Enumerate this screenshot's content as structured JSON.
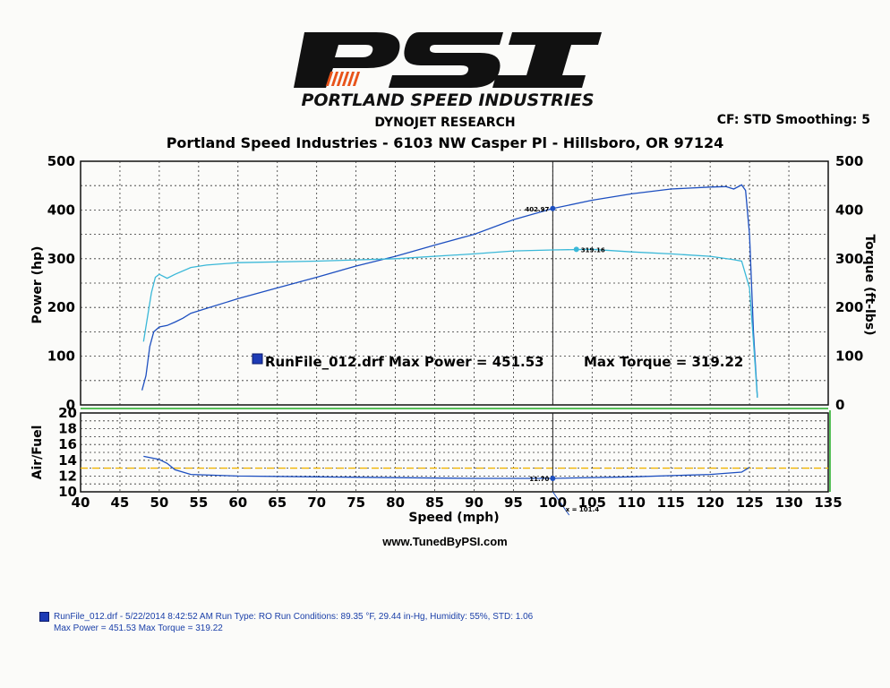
{
  "logo": {
    "letters": "PSI",
    "tagline": "PORTLAND SPEED INDUSTRIES"
  },
  "header": {
    "title": "DYNOJET RESEARCH",
    "settings": "CF: STD  Smoothing: 5",
    "address": "Portland Speed Industries - 6103 NW Casper Pl - Hillsboro, OR 97124"
  },
  "website": "www.TunedByPSI.com",
  "legend": {
    "run_text": "RunFile_012.drf Max Power = 451.53",
    "torque_text": "Max Torque = 319.22",
    "marker_color": "#1d3bb5"
  },
  "footer": {
    "line1": "RunFile_012.drf - 5/22/2014 8:42:52 AM  Run Type: RO  Run Conditions: 89.35 °F, 29.44 in-Hg,  Humidity:  55%, STD: 1.06",
    "line2": "Max Power = 451.53  Max Torque = 319.22"
  },
  "chart_data": [
    {
      "type": "line",
      "xlabel": "",
      "ylabel": "Power (hp)",
      "y2label": "Torque (ft-lbs)",
      "xlim": [
        40,
        135
      ],
      "ylim": [
        0,
        500
      ],
      "y2lim": [
        0,
        500
      ],
      "yticks": [
        0,
        100,
        200,
        300,
        400,
        500
      ],
      "grid": true,
      "cursor_x": 100,
      "annotations": [
        {
          "series": "power",
          "x": 100,
          "y": 402.97,
          "label": "402.97"
        },
        {
          "series": "torque",
          "x": 103,
          "y": 319.16,
          "label": "319.16"
        }
      ],
      "series": [
        {
          "id": "power",
          "color": "#1d4fc0",
          "x": [
            47.8,
            48.3,
            48.8,
            49.3,
            50,
            51,
            52,
            53,
            54,
            56,
            60,
            65,
            70,
            75,
            80,
            85,
            90,
            95,
            100,
            105,
            110,
            115,
            120,
            122,
            123,
            124,
            124.5,
            125,
            125.5,
            126
          ],
          "y": [
            30,
            60,
            120,
            150,
            160,
            163,
            170,
            178,
            188,
            198,
            218,
            240,
            262,
            285,
            305,
            328,
            350,
            380,
            402.97,
            420,
            433,
            443,
            447,
            448,
            443,
            451.53,
            440,
            350,
            150,
            15
          ]
        },
        {
          "id": "torque",
          "color": "#3ab8d8",
          "x": [
            48,
            48.5,
            49,
            49.5,
            50,
            51,
            52,
            54,
            56,
            60,
            70,
            80,
            90,
            95,
            100,
            105,
            110,
            115,
            120,
            123,
            124,
            125,
            125.5,
            126
          ],
          "y": [
            130,
            180,
            230,
            262,
            268,
            260,
            268,
            282,
            287,
            292,
            295,
            300,
            310,
            316,
            318,
            319.22,
            314,
            310,
            305,
            298,
            295,
            240,
            130,
            15
          ]
        }
      ]
    },
    {
      "type": "line",
      "xlabel": "Speed (mph)",
      "ylabel": "Air/Fuel",
      "xlim": [
        40,
        135
      ],
      "ylim": [
        10,
        20
      ],
      "yticks": [
        10,
        12,
        14,
        16,
        18,
        20
      ],
      "xticks": [
        40,
        45,
        50,
        55,
        60,
        65,
        70,
        75,
        80,
        85,
        90,
        95,
        100,
        105,
        110,
        115,
        120,
        125,
        130,
        135
      ],
      "grid": true,
      "reference_line": {
        "y": 13,
        "color": "#f0b400"
      },
      "cursor_x": 100,
      "annotations": [
        {
          "series": "afr",
          "x": 100,
          "y": 11.7,
          "label": "11.70"
        },
        {
          "x": 101.4,
          "label": "x = 101.4"
        }
      ],
      "series": [
        {
          "id": "afr",
          "color": "#1d4fc0",
          "x": [
            48,
            50,
            51,
            52,
            54,
            60,
            70,
            80,
            90,
            100,
            110,
            120,
            124,
            125
          ],
          "y": [
            14.5,
            14.1,
            13.6,
            12.8,
            12.2,
            12.0,
            11.9,
            11.8,
            11.7,
            11.7,
            11.9,
            12.2,
            12.5,
            13.1
          ]
        }
      ]
    }
  ]
}
